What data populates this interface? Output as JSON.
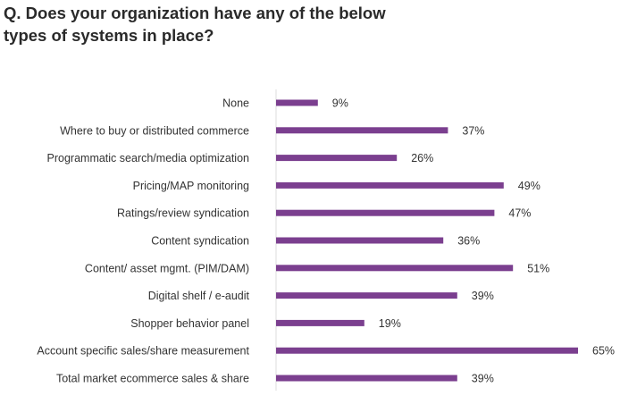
{
  "chart_data": {
    "type": "bar",
    "orientation": "horizontal",
    "title": "Q. Does your organization have any of the below types of systems in place?",
    "categories": [
      "None",
      "Where to buy or distributed commerce",
      "Programmatic search/media optimization",
      "Pricing/MAP monitoring",
      "Ratings/review syndication",
      "Content syndication",
      "Content/ asset mgmt. (PIM/DAM)",
      "Digital shelf / e-audit",
      "Shopper behavior panel",
      "Account specific sales/share measurement",
      "Total market ecommerce sales & share"
    ],
    "values": [
      9,
      37,
      26,
      49,
      47,
      36,
      51,
      39,
      19,
      65,
      39
    ],
    "value_labels": [
      "9%",
      "37%",
      "26%",
      "49%",
      "47%",
      "36%",
      "51%",
      "39%",
      "19%",
      "65%",
      "39%"
    ],
    "xlim": [
      0,
      65
    ],
    "grid": false,
    "bar_color": "#7B3F8F"
  }
}
